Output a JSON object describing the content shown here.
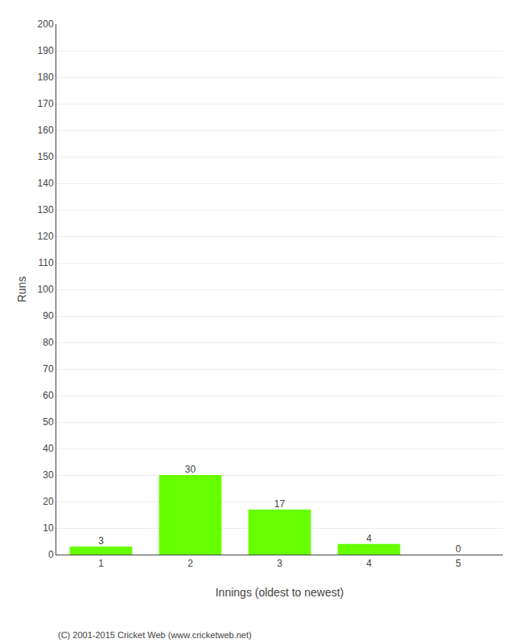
{
  "chart_data": {
    "type": "bar",
    "categories": [
      "1",
      "2",
      "3",
      "4",
      "5"
    ],
    "values": [
      3,
      30,
      17,
      4,
      0
    ],
    "color": "#66ff00",
    "xlabel": "Innings (oldest to newest)",
    "ylabel": "Runs",
    "ylim": [
      0,
      200
    ],
    "yticks": [
      0,
      10,
      20,
      30,
      40,
      50,
      60,
      70,
      80,
      90,
      100,
      110,
      120,
      130,
      140,
      150,
      160,
      170,
      180,
      190,
      200
    ],
    "grid": true,
    "data_labels": true,
    "annotations": [
      "(C) 2001-2015 Cricket Web (www.cricketweb.net)"
    ]
  }
}
